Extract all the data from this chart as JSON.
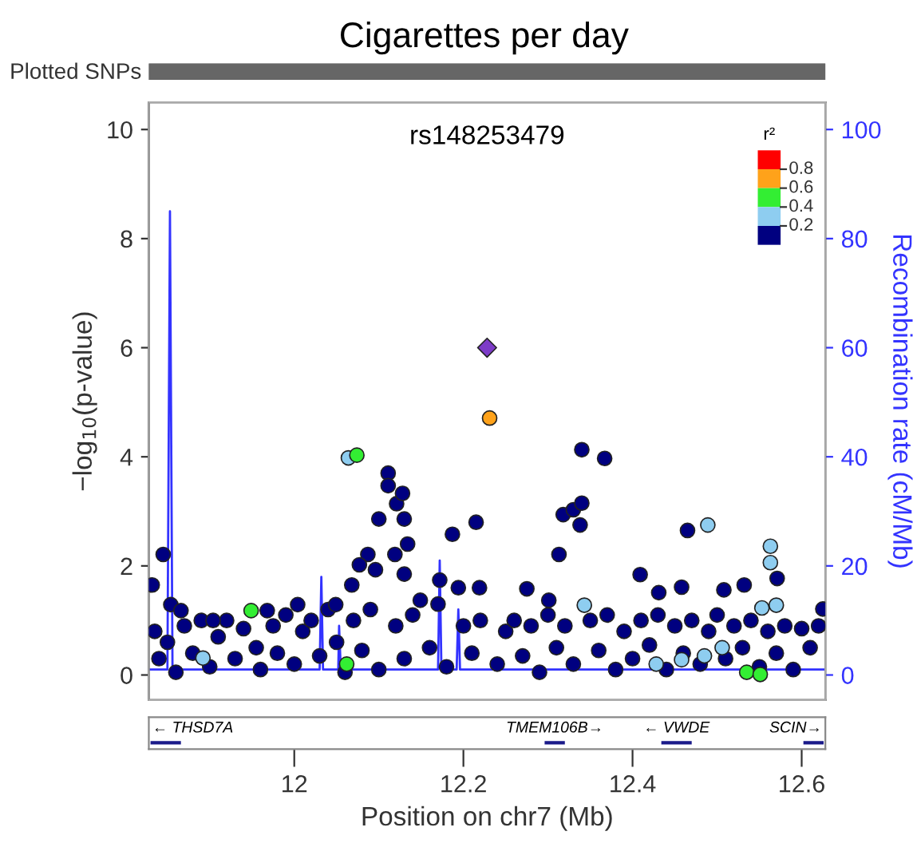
{
  "chart_data": {
    "type": "scatter",
    "title": "Cigarettes per day",
    "xlabel": "Position on chr7 (Mb)",
    "ylabel": "−log$_{10}$(p-value)",
    "y2label": "Recombination rate (cM/Mb)",
    "xlim": [
      11.828,
      12.628
    ],
    "xticks": [
      12,
      12.2,
      12.4,
      12.6
    ],
    "ylim": [
      -0.46,
      10.5
    ],
    "yticks": [
      0,
      2,
      4,
      6,
      8,
      10
    ],
    "y2lim": [
      -4.6,
      105
    ],
    "y2ticks": [
      0,
      20,
      40,
      60,
      80,
      100
    ],
    "grid": false,
    "legend": false,
    "annotations": [
      "rs148253479",
      "Plotted SNPs",
      "← THSD7A",
      "TMEM106B→",
      "← VWDE",
      "SCIN→",
      "r²",
      "0.8",
      "0.6",
      "0.4",
      "0.2"
    ],
    "series": [
      {
        "type": "line",
        "axis": "y2",
        "color": "#3333ff",
        "marker": "none",
        "line_style": "solid",
        "x": [
          11.828,
          11.85,
          11.853,
          11.856,
          12.03,
          12.032,
          12.034,
          12.052,
          12.053,
          12.055,
          12.17,
          12.172,
          12.174,
          12.192,
          12.194,
          12.196,
          12.628
        ],
        "values": [
          1,
          1,
          85,
          1,
          1,
          18,
          1,
          1,
          9,
          1,
          1,
          21,
          1,
          1,
          12,
          1,
          1
        ]
      },
      {
        "marker": "circle",
        "x": [
          11.835,
          11.84,
          11.85,
          11.86,
          11.87,
          11.88,
          11.89,
          11.9,
          11.91,
          11.92,
          11.93,
          11.94,
          11.955,
          11.96,
          11.975,
          11.98,
          11.99,
          12.0,
          12.01,
          12.02,
          12.03,
          12.04,
          12.05,
          12.06,
          12.07,
          12.08,
          12.09,
          12.1,
          12.12,
          12.13,
          12.14,
          12.16,
          12.17,
          12.18,
          12.2,
          12.21,
          12.22,
          12.24,
          12.25,
          12.26,
          12.27,
          12.28,
          12.29,
          12.3,
          12.31,
          12.32,
          12.33,
          12.35,
          12.36,
          12.37,
          12.38,
          12.39,
          12.4,
          12.41,
          12.42,
          12.43,
          12.44,
          12.45,
          12.46,
          12.47,
          12.48,
          12.49,
          12.5,
          12.51,
          12.52,
          12.53,
          12.54,
          12.55,
          12.56,
          12.57,
          12.58,
          12.59,
          12.6,
          12.61,
          12.62,
          11.832,
          11.845,
          11.854,
          11.866,
          11.904,
          11.968,
          12.004,
          12.049,
          12.111,
          12.111,
          12.1,
          12.121,
          12.128,
          12.13,
          12.134,
          12.087,
          12.077,
          12.068,
          12.096,
          12.119,
          12.13,
          12.149,
          12.187,
          12.215,
          12.172,
          12.194,
          12.219,
          12.34,
          12.367,
          12.318,
          12.33,
          12.34,
          12.338,
          12.313,
          12.465,
          12.571,
          12.409,
          12.431,
          12.458,
          12.508,
          12.532,
          12.275,
          12.301,
          12.625,
          11.892,
          12.064,
          12.489,
          12.563,
          12.563,
          12.343,
          12.553,
          12.57,
          12.428,
          12.458,
          12.485,
          12.506,
          11.949,
          12.074,
          12.062,
          12.535,
          12.551,
          12.231
        ],
        "values": [
          0.8,
          0.3,
          0.6,
          0.05,
          0.9,
          0.4,
          1.0,
          0.15,
          0.7,
          1.0,
          0.3,
          0.85,
          0.5,
          0.1,
          0.9,
          0.4,
          1.1,
          0.2,
          0.8,
          1.0,
          0.35,
          1.2,
          0.6,
          0.05,
          1.0,
          0.45,
          1.2,
          0.1,
          0.9,
          0.3,
          1.1,
          0.5,
          1.3,
          0.15,
          0.9,
          0.4,
          1.0,
          0.2,
          0.8,
          1.0,
          0.35,
          0.9,
          0.05,
          1.1,
          0.5,
          0.9,
          0.2,
          1.0,
          0.45,
          1.1,
          0.1,
          0.8,
          0.3,
          1.0,
          0.55,
          1.1,
          0.1,
          0.9,
          0.4,
          1.0,
          0.2,
          0.8,
          1.1,
          0.3,
          0.9,
          0.5,
          1.0,
          0.15,
          0.8,
          0.4,
          0.9,
          0.1,
          0.85,
          0.5,
          0.9,
          1.65,
          2.21,
          1.29,
          1.18,
          1.0,
          1.18,
          1.29,
          1.29,
          3.7,
          3.47,
          2.86,
          3.14,
          3.33,
          2.86,
          2.4,
          2.21,
          2.02,
          1.65,
          1.93,
          2.21,
          1.85,
          1.37,
          2.58,
          2.8,
          1.74,
          1.6,
          1.6,
          4.13,
          3.97,
          2.94,
          3.03,
          3.15,
          2.75,
          2.21,
          2.65,
          1.77,
          1.84,
          1.51,
          1.61,
          1.56,
          1.65,
          1.58,
          1.37,
          1.21,
          0.31,
          3.98,
          2.75,
          2.36,
          2.06,
          1.28,
          1.23,
          1.28,
          0.2,
          0.28,
          0.35,
          0.5,
          1.18,
          4.03,
          0.2,
          0.05,
          0.01,
          4.71
        ],
        "colors": [
          "#000080",
          "#000080",
          "#000080",
          "#000080",
          "#000080",
          "#000080",
          "#000080",
          "#000080",
          "#000080",
          "#000080",
          "#000080",
          "#000080",
          "#000080",
          "#000080",
          "#000080",
          "#000080",
          "#000080",
          "#000080",
          "#000080",
          "#000080",
          "#000080",
          "#000080",
          "#000080",
          "#000080",
          "#000080",
          "#000080",
          "#000080",
          "#000080",
          "#000080",
          "#000080",
          "#000080",
          "#000080",
          "#000080",
          "#000080",
          "#000080",
          "#000080",
          "#000080",
          "#000080",
          "#000080",
          "#000080",
          "#000080",
          "#000080",
          "#000080",
          "#000080",
          "#000080",
          "#000080",
          "#000080",
          "#000080",
          "#000080",
          "#000080",
          "#000080",
          "#000080",
          "#000080",
          "#000080",
          "#000080",
          "#000080",
          "#000080",
          "#000080",
          "#000080",
          "#000080",
          "#000080",
          "#000080",
          "#000080",
          "#000080",
          "#000080",
          "#000080",
          "#000080",
          "#000080",
          "#000080",
          "#000080",
          "#000080",
          "#000080",
          "#000080",
          "#000080",
          "#000080",
          "#000080",
          "#000080",
          "#000080",
          "#000080",
          "#000080",
          "#000080",
          "#000080",
          "#000080",
          "#000080",
          "#000080",
          "#000080",
          "#000080",
          "#000080",
          "#000080",
          "#000080",
          "#000080",
          "#000080",
          "#000080",
          "#000080",
          "#000080",
          "#000080",
          "#000080",
          "#000080",
          "#000080",
          "#000080",
          "#000080",
          "#000080",
          "#000080",
          "#000080",
          "#000080",
          "#000080",
          "#000080",
          "#000080",
          "#000080",
          "#000080",
          "#000080",
          "#000080",
          "#000080",
          "#000080",
          "#000080",
          "#000080",
          "#000080",
          "#000080",
          "#000080",
          "#8ecdf0",
          "#8ecdf0",
          "#8ecdf0",
          "#8ecdf0",
          "#8ecdf0",
          "#8ecdf0",
          "#8ecdf0",
          "#8ecdf0",
          "#8ecdf0",
          "#8ecdf0",
          "#8ecdf0",
          "#8ecdf0",
          "#33ee33",
          "#33ee33",
          "#33ee33",
          "#33ee33",
          "#33ee33",
          "#ffa21a"
        ]
      },
      {
        "type": "scatter",
        "marker": "diamond",
        "color": "#7d3cc8",
        "x": [
          12.228
        ],
        "values": [
          6.0
        ]
      }
    ]
  }
}
